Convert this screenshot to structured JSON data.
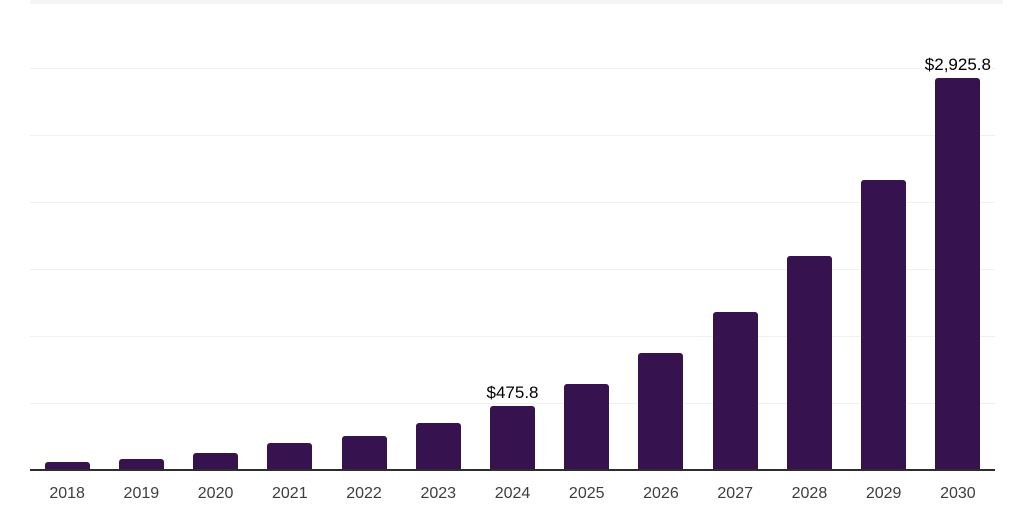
{
  "chart_data": {
    "type": "bar",
    "title": "",
    "xlabel": "",
    "ylabel": "",
    "categories": [
      "2018",
      "2019",
      "2020",
      "2021",
      "2022",
      "2023",
      "2024",
      "2025",
      "2026",
      "2027",
      "2028",
      "2029",
      "2030"
    ],
    "values": [
      62,
      82,
      127,
      200,
      254,
      350,
      475.8,
      644.0,
      871.6,
      1179.7,
      1596.7,
      2161.1,
      2925.8
    ],
    "data_labels": [
      "",
      "",
      "",
      "",
      "",
      "",
      "$475.8",
      "",
      "",
      "",
      "",
      "",
      "$2,925.8"
    ],
    "ylim": [
      0,
      3500
    ],
    "gridline_step": 500,
    "grid_on": true,
    "legend": "none",
    "colors": {
      "bar_color": "#36124E",
      "grid_color": "#f1f1f4",
      "top_band_color": "#f4f5f6",
      "axis_line_color": "#2d2d2d",
      "value_label_color": "#000000",
      "tick_label_color": "#3d3d3d",
      "background": "#ffffff"
    }
  }
}
